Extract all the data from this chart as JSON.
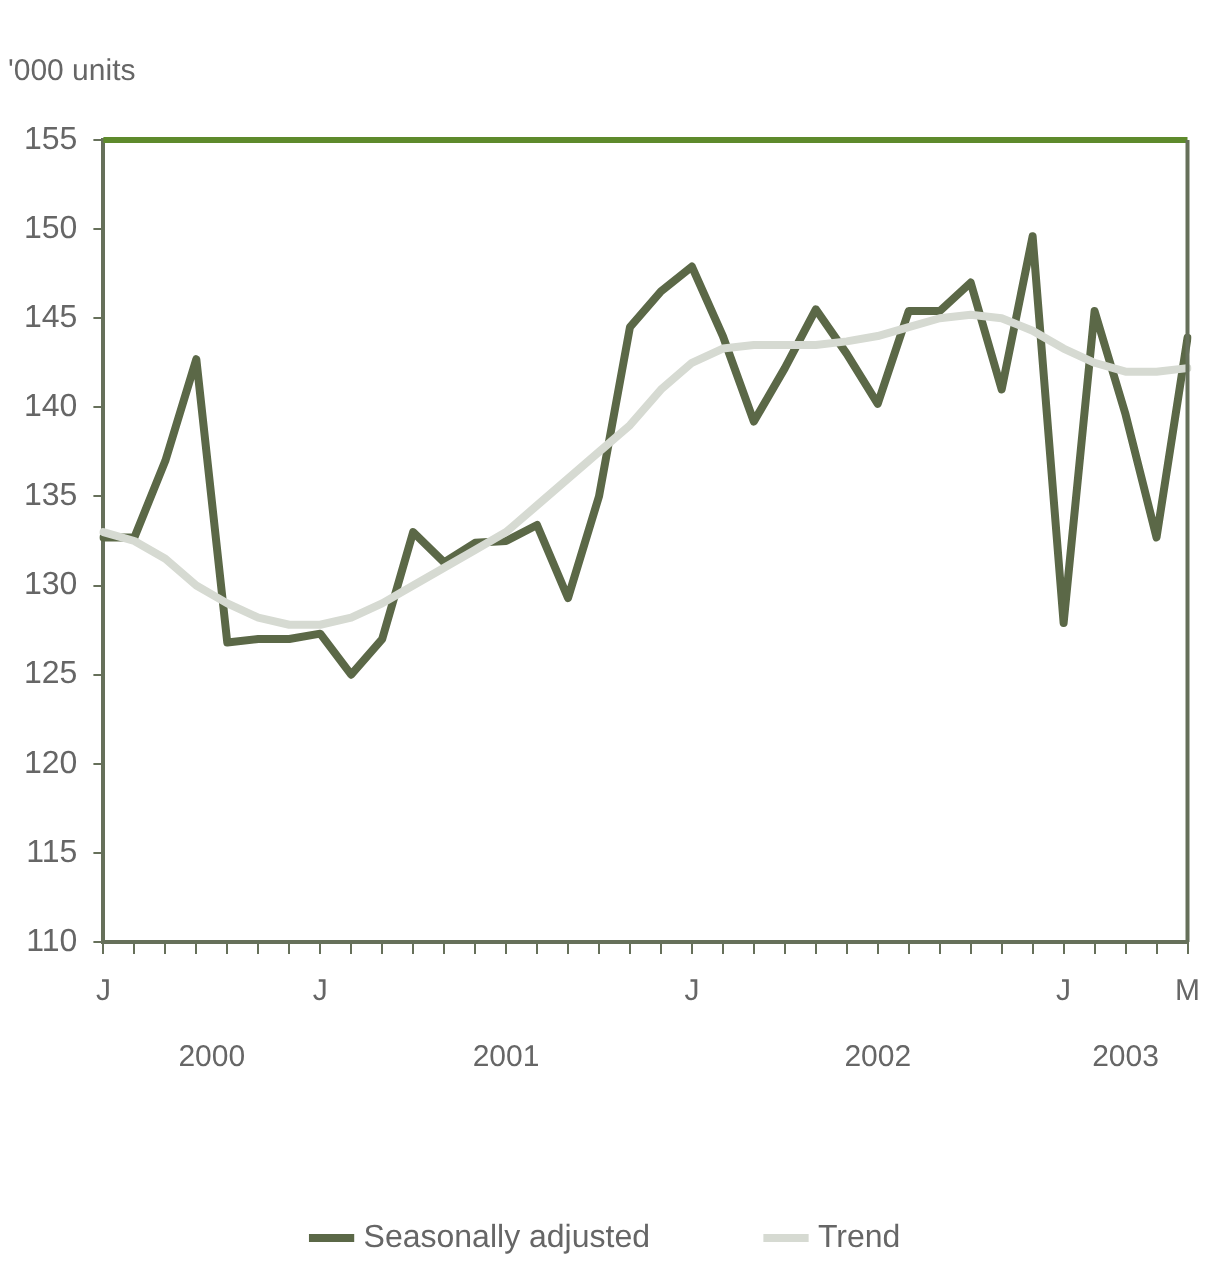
{
  "chart_data": {
    "type": "line",
    "ylabel": "'000 units",
    "categories": [
      "J",
      null,
      null,
      null,
      null,
      null,
      null,
      "J",
      null,
      null,
      null,
      null,
      null,
      null,
      null,
      null,
      null,
      null,
      null,
      "J",
      null,
      null,
      null,
      null,
      null,
      null,
      null,
      null,
      null,
      null,
      null,
      "J",
      null,
      null,
      null,
      "M"
    ],
    "series": [
      {
        "name": "Seasonally adjusted",
        "color": "#5b6847",
        "values": [
          132.7,
          132.7,
          137,
          142.7,
          126.8,
          127,
          127,
          127.3,
          125,
          127,
          133,
          131.3,
          132.4,
          132.5,
          133.4,
          129.3,
          135,
          144.5,
          146.5,
          147.9,
          144,
          139.2,
          142.2,
          145.5,
          143,
          140.2,
          145.4,
          145.4,
          147,
          141,
          149.6,
          127.9,
          145.4,
          139.6,
          132.7,
          143.9
        ]
      },
      {
        "name": "Trend",
        "color": "#d6dad2",
        "values": [
          133,
          132.5,
          131.5,
          130,
          129,
          128.2,
          127.8,
          127.8,
          128.2,
          129,
          130,
          131,
          132,
          133,
          134.5,
          136,
          137.5,
          139,
          141,
          142.5,
          143.3,
          143.5,
          143.5,
          143.5,
          143.7,
          144,
          144.5,
          145,
          145.2,
          145,
          144.3,
          143.3,
          142.5,
          142,
          142,
          142.2
        ]
      }
    ],
    "ylim": [
      110,
      155
    ],
    "yticks": [
      110,
      115,
      120,
      125,
      130,
      135,
      140,
      145,
      150,
      155
    ],
    "annotations": [
      "2000",
      "2001",
      "2002",
      "2003"
    ],
    "legend": "bottom",
    "marker": "none",
    "line_style": "solid"
  }
}
